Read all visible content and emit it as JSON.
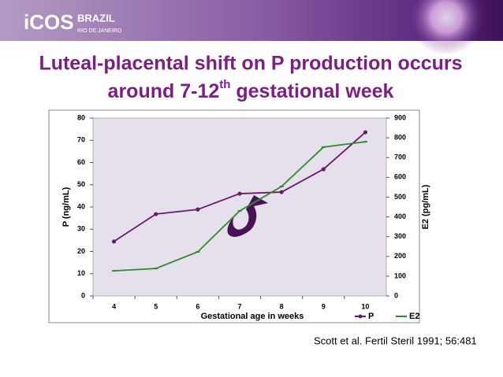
{
  "header": {
    "logo": "iCOS",
    "logo_country": "BRAZIL",
    "logo_city": "RIO DE JANEIRO"
  },
  "title_line1": "Luteal-placental shift on P production occurs",
  "title_line2": {
    "before": "around 7-12",
    "sup": "th",
    "after": " gestational week"
  },
  "citation": "Scott et al. Fertil Steril 1991; 56:481",
  "chart_data": {
    "type": "line",
    "xlabel": "Gestational age in weeks",
    "ylabel": "P (ng/mL)",
    "y2label": "E2 (pg/mL)",
    "categories": [
      "4",
      "5",
      "6",
      "7",
      "8",
      "9",
      "10"
    ],
    "series": [
      {
        "name": "P",
        "color": "#6a1b6e",
        "values": [
          24.5,
          36.8,
          38.9,
          46,
          46.7,
          57,
          73.6
        ]
      },
      {
        "name": "E2",
        "color": "#2e8b2e",
        "axis": "y2",
        "values": [
          127,
          139,
          223,
          430,
          554,
          753,
          780
        ]
      }
    ],
    "ylim": [
      0,
      80
    ],
    "yticks": [
      0,
      10,
      20,
      30,
      40,
      50,
      60,
      70,
      80
    ],
    "y2lim": [
      0,
      900
    ],
    "y2ticks": [
      0,
      100,
      200,
      300,
      400,
      500,
      600,
      700,
      800,
      900
    ],
    "grid": false,
    "legend": "bottom-right"
  }
}
